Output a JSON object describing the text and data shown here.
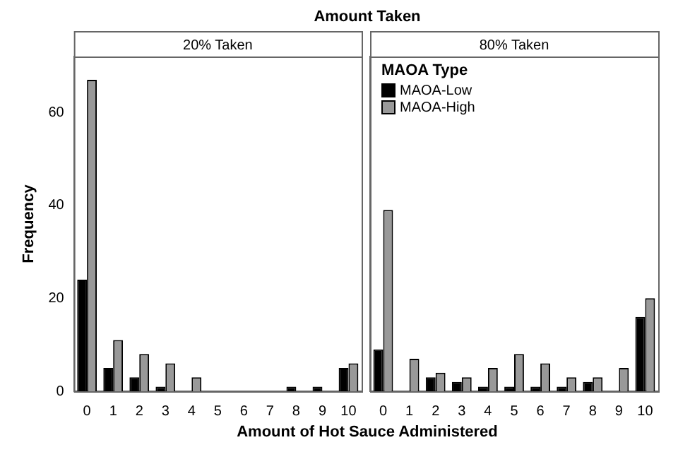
{
  "chart_data": [
    {
      "type": "bar",
      "title": "20% Taken",
      "annotations": [
        "Amount Taken"
      ],
      "xlabel": "Amount of Hot Sauce Administered",
      "ylabel": "Frequency",
      "categories": [
        "0",
        "1",
        "2",
        "3",
        "4",
        "5",
        "6",
        "7",
        "8",
        "9",
        "10"
      ],
      "series": [
        {
          "color": "#000000",
          "values": [
            24,
            5,
            3,
            1,
            0,
            0,
            0,
            0,
            1,
            1,
            5
          ]
        },
        {
          "color": "#999999",
          "values": [
            67,
            11,
            8,
            6,
            3,
            0,
            0,
            0,
            0,
            0,
            6
          ]
        }
      ],
      "ylim": [
        0,
        72
      ],
      "yticks": [
        0,
        20,
        40,
        60
      ],
      "grid": false,
      "legend": false
    },
    {
      "type": "bar",
      "title": "80% Taken",
      "categories": [
        "0",
        "1",
        "2",
        "3",
        "4",
        "5",
        "6",
        "7",
        "8",
        "9",
        "10"
      ],
      "series": [
        {
          "name": "MAOA-Low",
          "color": "#000000",
          "values": [
            9,
            0,
            3,
            2,
            1,
            1,
            1,
            1,
            2,
            0,
            16
          ]
        },
        {
          "name": "MAOA-High",
          "color": "#999999",
          "values": [
            39,
            7,
            4,
            3,
            5,
            8,
            6,
            3,
            3,
            5,
            20
          ]
        }
      ],
      "ylim": [
        0,
        72
      ],
      "yticks": [
        0,
        20,
        40,
        60
      ],
      "tick_labels": "x",
      "grid": false,
      "legend": "top left",
      "legend_title": "MAOA Type"
    }
  ]
}
